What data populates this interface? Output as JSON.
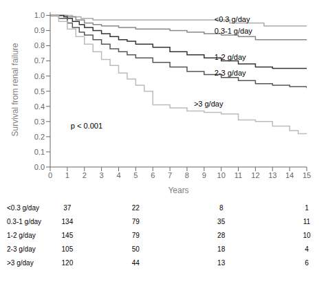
{
  "chart_data": {
    "type": "step",
    "xlabel": "Years",
    "ylabel": "Survival from renal failure",
    "xlim": [
      0,
      15
    ],
    "ylim": [
      0,
      1.02
    ],
    "xticks": [
      0,
      1,
      2,
      3,
      4,
      5,
      6,
      7,
      8,
      9,
      10,
      11,
      12,
      13,
      14,
      15
    ],
    "yticks": [
      {
        "value": 0,
        "label": "0.0"
      },
      0.1,
      0.2,
      0.3,
      0.4,
      0.5,
      0.6,
      0.7,
      0.8,
      0.9,
      {
        "value": 1.0,
        "label": "1.0"
      }
    ],
    "grid": false,
    "annotations": [
      {
        "text": "p < 0.001",
        "x": 1.2,
        "y": 0.27
      },
      {
        "text": "<0.3 g/day",
        "x": 9.6,
        "y": 0.975
      },
      {
        "text": "0.3-1 g/day",
        "x": 9.6,
        "y": 0.895
      },
      {
        "text": "1-2 g/day",
        "x": 9.6,
        "y": 0.725
      },
      {
        "text": "2-3 g/day",
        "x": 9.6,
        "y": 0.62
      },
      {
        "text": ">3 g/day",
        "x": 8.4,
        "y": 0.415
      }
    ],
    "series": [
      {
        "name": "<0.3 g/day",
        "color": "#aaaaaa",
        "x": [
          0,
          1.0,
          1.3,
          1.8,
          2.5,
          3.5,
          5.0,
          6.5,
          9.5,
          10.5,
          11.5,
          12.5,
          15.0
        ],
        "values": [
          1.0,
          1.0,
          0.99,
          0.98,
          0.97,
          0.97,
          0.97,
          0.97,
          0.97,
          0.95,
          0.95,
          0.93,
          0.93
        ],
        "at_risk": [
          37,
          22,
          8,
          1
        ]
      },
      {
        "name": "0.3-1 g/day",
        "color": "#888888",
        "x": [
          0,
          1.0,
          1.5,
          2.0,
          2.5,
          3.0,
          4.0,
          5.0,
          6.0,
          7.0,
          8.0,
          9.0,
          10.0,
          11.0,
          12.0,
          13.0,
          14.0,
          15.0
        ],
        "values": [
          1.0,
          0.99,
          0.97,
          0.95,
          0.94,
          0.93,
          0.92,
          0.91,
          0.91,
          0.9,
          0.89,
          0.88,
          0.87,
          0.86,
          0.84,
          0.84,
          0.84,
          0.84
        ],
        "at_risk": [
          134,
          79,
          35,
          11
        ]
      },
      {
        "name": "1-2 g/day",
        "color": "#333333",
        "x": [
          0,
          0.8,
          1.0,
          1.3,
          1.7,
          2.0,
          2.5,
          3.0,
          3.5,
          4.0,
          4.5,
          5.0,
          6.0,
          7.0,
          8.0,
          9.0,
          10.0,
          10.5,
          11.0,
          12.0,
          13.0,
          14.0,
          15.0
        ],
        "values": [
          1.0,
          0.99,
          0.98,
          0.96,
          0.94,
          0.92,
          0.9,
          0.88,
          0.86,
          0.84,
          0.83,
          0.81,
          0.79,
          0.76,
          0.74,
          0.72,
          0.7,
          0.7,
          0.68,
          0.66,
          0.65,
          0.65,
          0.65
        ],
        "at_risk": [
          145,
          79,
          28,
          10
        ]
      },
      {
        "name": "2-3 g/day",
        "color": "#555555",
        "x": [
          0,
          0.5,
          1.0,
          1.3,
          1.7,
          2.0,
          2.5,
          3.0,
          3.5,
          4.0,
          4.5,
          5.0,
          6.0,
          7.0,
          8.0,
          9.0,
          10.0,
          11.0,
          12.0,
          13.0,
          14.0,
          15.0
        ],
        "values": [
          1.0,
          0.98,
          0.95,
          0.92,
          0.89,
          0.87,
          0.84,
          0.81,
          0.78,
          0.76,
          0.74,
          0.72,
          0.69,
          0.66,
          0.63,
          0.61,
          0.59,
          0.57,
          0.55,
          0.54,
          0.53,
          0.52
        ],
        "at_risk": [
          105,
          50,
          18,
          4
        ]
      },
      {
        "name": ">3 g/day",
        "color": "#bbbbbb",
        "x": [
          0,
          0.5,
          1.0,
          1.5,
          2.0,
          2.5,
          3.0,
          3.5,
          4.0,
          4.5,
          5.0,
          5.5,
          6.0,
          7.0,
          8.0,
          9.0,
          10.0,
          10.5,
          11.0,
          12.0,
          13.0,
          14.0,
          14.5,
          15.0
        ],
        "values": [
          1.0,
          0.96,
          0.91,
          0.86,
          0.81,
          0.76,
          0.71,
          0.67,
          0.62,
          0.58,
          0.54,
          0.5,
          0.41,
          0.39,
          0.37,
          0.36,
          0.35,
          0.35,
          0.31,
          0.3,
          0.27,
          0.24,
          0.22,
          0.22
        ],
        "at_risk": [
          120,
          44,
          13,
          6
        ]
      }
    ]
  }
}
